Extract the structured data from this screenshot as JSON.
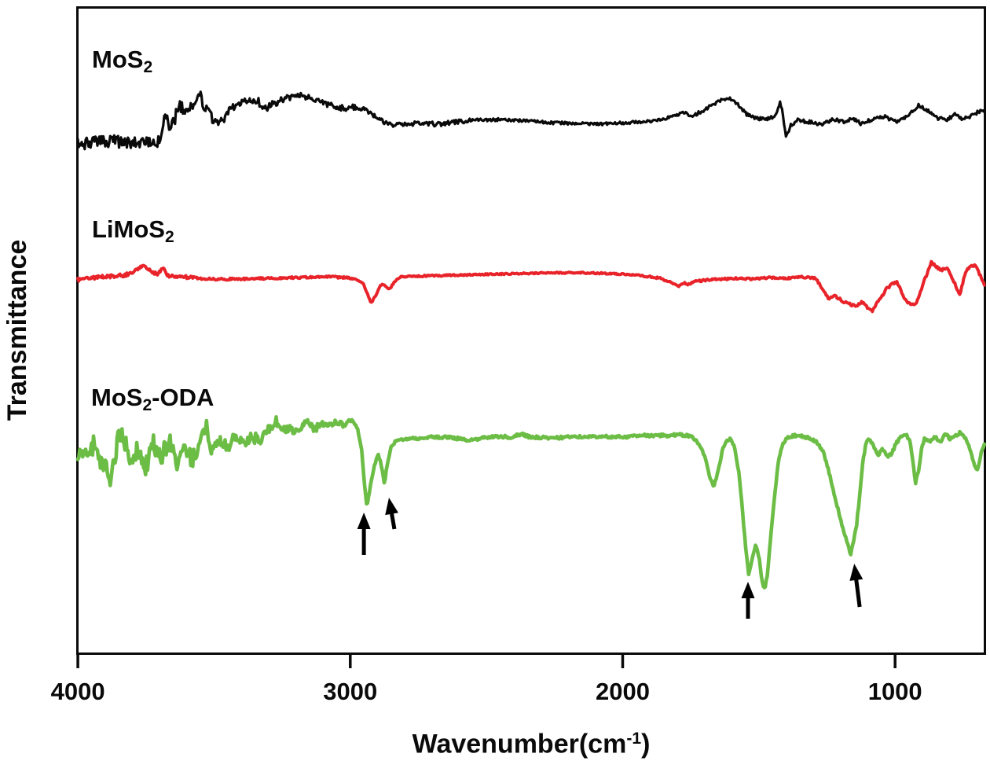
{
  "chart_data": {
    "type": "line",
    "title": "",
    "xlabel": {
      "pre": "Wavenumber(cm",
      "sup": "-1",
      "post": ")",
      "plain": "Wavenumber(cm-1)"
    },
    "ylabel": "Transmittance",
    "x_axis": {
      "xlim": [
        4006,
        666
      ],
      "direction": "decreasing",
      "ticks": [
        4000,
        3000,
        2000,
        1000
      ],
      "tick_labels": [
        "4000",
        "3000",
        "2000",
        "1000"
      ],
      "grid": false
    },
    "y_axis": {
      "label": "Transmittance",
      "tick_labels": [],
      "note": "arbitrary units, no tick marks; curve y values below are in image pixels (top=0, lower value = higher transmittance)"
    },
    "legend_position": "labels-above-curves",
    "series": [
      {
        "name": "MoS2",
        "label": {
          "pre": "MoS",
          "sub": "2",
          "post": ""
        },
        "color": "#0a0a0a",
        "line_width": 3.2,
        "seed": 101,
        "noise": [
          [
            4006,
            3700,
            8
          ],
          [
            3700,
            3460,
            8.5
          ],
          [
            3460,
            3260,
            5
          ],
          [
            3260,
            2980,
            4
          ],
          [
            2980,
            2560,
            3
          ],
          [
            2560,
            1800,
            1.8
          ],
          [
            1800,
            666,
            2.2
          ]
        ],
        "points": [
          [
            4006,
            183
          ],
          [
            3882,
            180
          ],
          [
            3709,
            182
          ],
          [
            3694,
            170
          ],
          [
            3680,
            148
          ],
          [
            3657,
            162
          ],
          [
            3628,
            135
          ],
          [
            3593,
            142
          ],
          [
            3553,
            122
          ],
          [
            3530,
            138
          ],
          [
            3507,
            148
          ],
          [
            3472,
            152
          ],
          [
            3435,
            138
          ],
          [
            3391,
            130
          ],
          [
            3345,
            127
          ],
          [
            3311,
            138
          ],
          [
            3270,
            130
          ],
          [
            3233,
            124
          ],
          [
            3189,
            122
          ],
          [
            3152,
            124
          ],
          [
            3103,
            130
          ],
          [
            3045,
            138
          ],
          [
            2973,
            136
          ],
          [
            2930,
            142
          ],
          [
            2895,
            152
          ],
          [
            2843,
            160
          ],
          [
            2771,
            157
          ],
          [
            2670,
            158
          ],
          [
            2555,
            153
          ],
          [
            2440,
            152
          ],
          [
            2266,
            156
          ],
          [
            2093,
            158
          ],
          [
            1978,
            156
          ],
          [
            1863,
            153
          ],
          [
            1799,
            146
          ],
          [
            1773,
            142
          ],
          [
            1747,
            148
          ],
          [
            1719,
            143
          ],
          [
            1690,
            138
          ],
          [
            1655,
            130
          ],
          [
            1615,
            124
          ],
          [
            1580,
            132
          ],
          [
            1546,
            145
          ],
          [
            1511,
            150
          ],
          [
            1473,
            152
          ],
          [
            1445,
            148
          ],
          [
            1430,
            140
          ],
          [
            1422,
            128
          ],
          [
            1410,
            150
          ],
          [
            1401,
            175
          ],
          [
            1384,
            160
          ],
          [
            1358,
            153
          ],
          [
            1315,
            155
          ],
          [
            1272,
            158
          ],
          [
            1228,
            152
          ],
          [
            1185,
            155
          ],
          [
            1156,
            150
          ],
          [
            1127,
            157
          ],
          [
            1084,
            152
          ],
          [
            1041,
            148
          ],
          [
            997,
            155
          ],
          [
            954,
            148
          ],
          [
            914,
            134
          ],
          [
            882,
            140
          ],
          [
            847,
            150
          ],
          [
            810,
            152
          ],
          [
            781,
            146
          ],
          [
            752,
            152
          ],
          [
            723,
            148
          ],
          [
            694,
            142
          ],
          [
            666,
            140
          ]
        ]
      },
      {
        "name": "LiMoS2",
        "label": {
          "pre": "LiMoS",
          "sub": "2",
          "post": ""
        },
        "color": "#e8232a",
        "line_width": 4,
        "seed": 202,
        "noise": [
          [
            4006,
            3560,
            2.2
          ],
          [
            3560,
            2980,
            1.2
          ],
          [
            2980,
            1900,
            0.9
          ],
          [
            1900,
            1260,
            1.2
          ],
          [
            1260,
            666,
            1.6
          ]
        ],
        "points": [
          [
            4006,
            356
          ],
          [
            3911,
            352
          ],
          [
            3824,
            350
          ],
          [
            3781,
            342
          ],
          [
            3758,
            336
          ],
          [
            3737,
            344
          ],
          [
            3709,
            348
          ],
          [
            3686,
            342
          ],
          [
            3666,
            352
          ],
          [
            3622,
            352
          ],
          [
            3565,
            354
          ],
          [
            3507,
            355
          ],
          [
            3420,
            355
          ],
          [
            3305,
            354
          ],
          [
            3189,
            353
          ],
          [
            3074,
            352
          ],
          [
            2988,
            354
          ],
          [
            2953,
            360
          ],
          [
            2936,
            375
          ],
          [
            2924,
            386
          ],
          [
            2907,
            376
          ],
          [
            2890,
            364
          ],
          [
            2881,
            361
          ],
          [
            2867,
            366
          ],
          [
            2855,
            368
          ],
          [
            2838,
            358
          ],
          [
            2815,
            352
          ],
          [
            2728,
            351
          ],
          [
            2613,
            350
          ],
          [
            2497,
            349
          ],
          [
            2382,
            348
          ],
          [
            2266,
            347
          ],
          [
            2151,
            347
          ],
          [
            2036,
            348
          ],
          [
            1949,
            350
          ],
          [
            1863,
            354
          ],
          [
            1819,
            360
          ],
          [
            1796,
            364
          ],
          [
            1776,
            360
          ],
          [
            1759,
            362
          ],
          [
            1733,
            358
          ],
          [
            1690,
            356
          ],
          [
            1632,
            355
          ],
          [
            1574,
            354
          ],
          [
            1517,
            355
          ],
          [
            1459,
            353
          ],
          [
            1401,
            354
          ],
          [
            1343,
            352
          ],
          [
            1291,
            354
          ],
          [
            1245,
            380
          ],
          [
            1222,
            376
          ],
          [
            1187,
            384
          ],
          [
            1144,
            390
          ],
          [
            1121,
            384
          ],
          [
            1086,
            396
          ],
          [
            1055,
            380
          ],
          [
            1029,
            366
          ],
          [
            994,
            358
          ],
          [
            959,
            384
          ],
          [
            925,
            388
          ],
          [
            896,
            360
          ],
          [
            867,
            334
          ],
          [
            833,
            344
          ],
          [
            810,
            340
          ],
          [
            786,
            356
          ],
          [
            763,
            376
          ],
          [
            740,
            344
          ],
          [
            706,
            336
          ],
          [
            686,
            352
          ],
          [
            666,
            368
          ]
        ]
      },
      {
        "name": "MoS2-ODA",
        "label": {
          "pre": "MoS",
          "sub": "2",
          "post": "-ODA"
        },
        "color": "#6cbd45",
        "line_width": 4.6,
        "seed": 303,
        "noise": [
          [
            4006,
            3500,
            12
          ],
          [
            3500,
            3270,
            7
          ],
          [
            3270,
            2995,
            4.5
          ],
          [
            2995,
            2790,
            1.5
          ],
          [
            2790,
            1770,
            1.8
          ],
          [
            1770,
            1420,
            1.5
          ],
          [
            1420,
            666,
            1.8
          ]
        ],
        "points": [
          [
            4006,
            573
          ],
          [
            3968,
            580
          ],
          [
            3940,
            565
          ],
          [
            3911,
            590
          ],
          [
            3879,
            607
          ],
          [
            3853,
            560
          ],
          [
            3839,
            545
          ],
          [
            3810,
            585
          ],
          [
            3781,
            570
          ],
          [
            3752,
            595
          ],
          [
            3723,
            565
          ],
          [
            3694,
            580
          ],
          [
            3666,
            560
          ],
          [
            3637,
            592
          ],
          [
            3608,
            570
          ],
          [
            3579,
            585
          ],
          [
            3550,
            558
          ],
          [
            3530,
            540
          ],
          [
            3507,
            575
          ],
          [
            3478,
            560
          ],
          [
            3449,
            570
          ],
          [
            3420,
            552
          ],
          [
            3391,
            562
          ],
          [
            3363,
            555
          ],
          [
            3334,
            560
          ],
          [
            3305,
            548
          ],
          [
            3276,
            534
          ],
          [
            3253,
            548
          ],
          [
            3224,
            545
          ],
          [
            3195,
            550
          ],
          [
            3161,
            537
          ],
          [
            3132,
            545
          ],
          [
            3097,
            540
          ],
          [
            3060,
            537
          ],
          [
            3031,
            540
          ],
          [
            2994,
            535
          ],
          [
            2973,
            545
          ],
          [
            2959,
            570
          ],
          [
            2947,
            620
          ],
          [
            2939,
            645
          ],
          [
            2927,
            620
          ],
          [
            2910,
            590
          ],
          [
            2898,
            578
          ],
          [
            2887,
            590
          ],
          [
            2875,
            616
          ],
          [
            2864,
            590
          ],
          [
            2852,
            570
          ],
          [
            2835,
            562
          ],
          [
            2815,
            560
          ],
          [
            2771,
            558
          ],
          [
            2714,
            556
          ],
          [
            2642,
            556
          ],
          [
            2555,
            560
          ],
          [
            2483,
            555
          ],
          [
            2411,
            556
          ],
          [
            2374,
            552
          ],
          [
            2339,
            556
          ],
          [
            2266,
            557
          ],
          [
            2180,
            556
          ],
          [
            2093,
            555
          ],
          [
            2007,
            556
          ],
          [
            1920,
            554
          ],
          [
            1834,
            554
          ],
          [
            1785,
            553
          ],
          [
            1747,
            555
          ],
          [
            1719,
            565
          ],
          [
            1699,
            580
          ],
          [
            1681,
            605
          ],
          [
            1667,
            620
          ],
          [
            1650,
            600
          ],
          [
            1632,
            570
          ],
          [
            1618,
            560
          ],
          [
            1603,
            558
          ],
          [
            1589,
            570
          ],
          [
            1574,
            600
          ],
          [
            1560,
            650
          ],
          [
            1548,
            700
          ],
          [
            1537,
            732
          ],
          [
            1525,
            710
          ],
          [
            1511,
            692
          ],
          [
            1499,
            710
          ],
          [
            1488,
            740
          ],
          [
            1479,
            750
          ],
          [
            1468,
            730
          ],
          [
            1456,
            680
          ],
          [
            1445,
            640
          ],
          [
            1430,
            590
          ],
          [
            1413,
            565
          ],
          [
            1396,
            557
          ],
          [
            1373,
            554
          ],
          [
            1344,
            555
          ],
          [
            1315,
            557
          ],
          [
            1287,
            563
          ],
          [
            1266,
            573
          ],
          [
            1243,
            600
          ],
          [
            1220,
            633
          ],
          [
            1194,
            670
          ],
          [
            1163,
            705
          ],
          [
            1142,
            670
          ],
          [
            1131,
            633
          ],
          [
            1119,
            590
          ],
          [
            1108,
            565
          ],
          [
            1096,
            557
          ],
          [
            1079,
            568
          ],
          [
            1062,
            580
          ],
          [
            1047,
            570
          ],
          [
            1027,
            580
          ],
          [
            1013,
            578
          ],
          [
            998,
            565
          ],
          [
            978,
            555
          ],
          [
            961,
            552
          ],
          [
            946,
            560
          ],
          [
            935,
            585
          ],
          [
            926,
            615
          ],
          [
            914,
            600
          ],
          [
            903,
            570
          ],
          [
            891,
            557
          ],
          [
            874,
            562
          ],
          [
            854,
            555
          ],
          [
            833,
            563
          ],
          [
            816,
            551
          ],
          [
            799,
            558
          ],
          [
            781,
            555
          ],
          [
            761,
            550
          ],
          [
            744,
            556
          ],
          [
            726,
            570
          ],
          [
            709,
            593
          ],
          [
            697,
            597
          ],
          [
            683,
            575
          ],
          [
            671,
            563
          ],
          [
            666,
            563
          ]
        ]
      }
    ],
    "annotations": {
      "arrow_color": "#000000",
      "note": "black arrows mark MoS2-ODA absorption bands; coordinates are [wavenumber cm-1, y image px]",
      "arrows": [
        {
          "tip": [
            2950,
            652
          ],
          "tail": [
            2950,
            706
          ]
        },
        {
          "tip": [
            2858,
            633
          ],
          "tail": [
            2838,
            673
          ]
        },
        {
          "tip": [
            1540,
            740
          ],
          "tail": [
            1540,
            787
          ]
        },
        {
          "tip": [
            1150,
            717
          ],
          "tail": [
            1130,
            772
          ]
        }
      ]
    }
  }
}
